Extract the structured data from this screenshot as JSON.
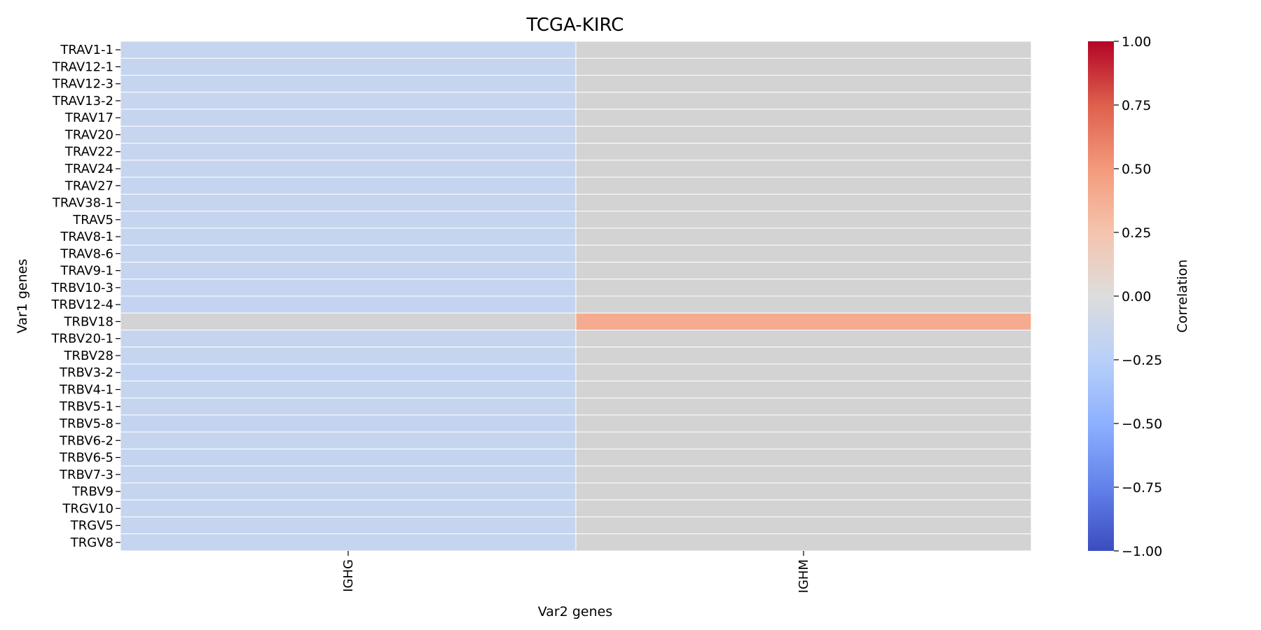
{
  "chart_data": {
    "type": "heatmap",
    "title": "TCGA-KIRC",
    "xlabel": "Var2 genes",
    "ylabel": "Var1 genes",
    "columns": [
      "IGHG",
      "IGHM"
    ],
    "row_count": 30,
    "labeled_rows": [
      {
        "row": 0,
        "label": "TRAV1-1"
      },
      {
        "row": 1,
        "label": "TRAV12-1"
      },
      {
        "row": 2,
        "label": "TRAV12-3"
      },
      {
        "row": 3,
        "label": "TRAV13-2"
      },
      {
        "row": 4,
        "label": "TRAV17"
      },
      {
        "row": 5,
        "label": "TRAV20"
      },
      {
        "row": 6,
        "label": "TRAV22"
      },
      {
        "row": 7,
        "label": "TRAV24"
      },
      {
        "row": 8,
        "label": "TRAV27"
      },
      {
        "row": 9,
        "label": "TRAV38-1"
      },
      {
        "row": 10,
        "label": "TRAV5"
      },
      {
        "row": 11,
        "label": "TRAV8-1"
      },
      {
        "row": 12,
        "label": "TRAV8-6"
      },
      {
        "row": 13,
        "label": "TRAV9-1"
      },
      {
        "row": 14,
        "label": "TRBV10-3"
      },
      {
        "row": 15,
        "label": "TRBV12-4"
      },
      {
        "row": 16,
        "label": "TRBV18"
      },
      {
        "row": 17,
        "label": "TRBV20-1"
      },
      {
        "row": 18,
        "label": "TRBV28"
      },
      {
        "row": 19,
        "label": "TRBV3-2"
      },
      {
        "row": 20,
        "label": "TRBV4-1"
      },
      {
        "row": 21,
        "label": "TRBV5-1"
      },
      {
        "row": 22,
        "label": "TRBV5-8"
      },
      {
        "row": 23,
        "label": "TRBV6-2"
      },
      {
        "row": 24,
        "label": "TRBV6-5"
      },
      {
        "row": 25,
        "label": "TRBV7-3"
      },
      {
        "row": 26,
        "label": "TRBV9"
      },
      {
        "row": 27,
        "label": "TRGV10"
      },
      {
        "row": 28,
        "label": "TRGV5"
      },
      {
        "row": 29,
        "label": "TRGV8"
      }
    ],
    "values": [
      [
        -0.16,
        null
      ],
      [
        -0.16,
        null
      ],
      [
        -0.16,
        null
      ],
      [
        -0.15,
        null
      ],
      [
        -0.16,
        null
      ],
      [
        -0.15,
        null
      ],
      [
        -0.15,
        null
      ],
      [
        -0.16,
        null
      ],
      [
        -0.16,
        null
      ],
      [
        -0.16,
        null
      ],
      [
        -0.16,
        null
      ],
      [
        -0.16,
        null
      ],
      [
        -0.16,
        null
      ],
      [
        -0.16,
        null
      ],
      [
        -0.16,
        null
      ],
      [
        -0.17,
        null
      ],
      [
        null,
        0.4
      ],
      [
        -0.16,
        null
      ],
      [
        -0.16,
        null
      ],
      [
        -0.18,
        null
      ],
      [
        -0.16,
        null
      ],
      [
        -0.16,
        null
      ],
      [
        -0.17,
        null
      ],
      [
        -0.16,
        null
      ],
      [
        -0.17,
        null
      ],
      [
        -0.16,
        null
      ],
      [
        -0.16,
        null
      ],
      [
        -0.16,
        null
      ],
      [
        -0.16,
        null
      ],
      [
        -0.16,
        null
      ]
    ],
    "missing_color": "#d3d3d3",
    "colormap": "coolwarm",
    "vmin": -1.0,
    "vmax": 1.0,
    "colorbar": {
      "label": "Correlation",
      "ticks": [
        1.0,
        0.75,
        0.5,
        0.25,
        0.0,
        -0.25,
        -0.5,
        -0.75,
        -1.0
      ],
      "tick_labels": [
        "1.00",
        "0.75",
        "0.50",
        "0.25",
        "0.00",
        "−0.25",
        "−0.50",
        "−0.75",
        "−1.00"
      ]
    }
  }
}
